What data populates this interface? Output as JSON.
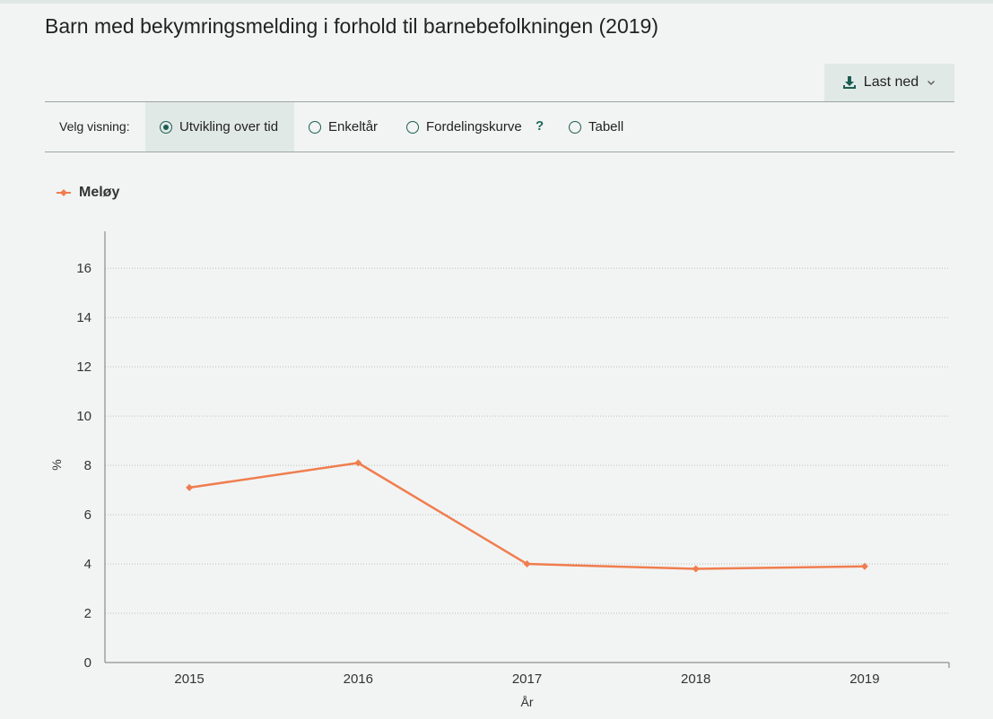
{
  "title": "Barn med bekymringsmelding i forhold til barnebefolkningen (2019)",
  "download": {
    "label": "Last ned",
    "icon": "download-icon",
    "caret_icon": "chevron-down-icon"
  },
  "view": {
    "label": "Velg visning:",
    "options": [
      {
        "label": "Utvikling over tid",
        "selected": true
      },
      {
        "label": "Enkeltår",
        "selected": false
      },
      {
        "label": "Fordelingskurve",
        "selected": false
      },
      {
        "label": "Tabell",
        "selected": false
      }
    ],
    "help": "?"
  },
  "colors": {
    "accent": "#1c5d52",
    "series": "#f07d4f",
    "grid": "#b9c0bd"
  },
  "chart_data": {
    "type": "line",
    "x": [
      "2015",
      "2016",
      "2017",
      "2018",
      "2019"
    ],
    "series": [
      {
        "name": "Meløy",
        "values": [
          7.1,
          8.1,
          4.0,
          3.8,
          3.9
        ]
      }
    ],
    "xlabel": "År",
    "ylabel": "%",
    "ylim": [
      0,
      17.5
    ],
    "yticks": [
      0,
      2,
      4,
      6,
      8,
      10,
      12,
      14,
      16
    ],
    "grid": true,
    "legend": "top-left"
  }
}
